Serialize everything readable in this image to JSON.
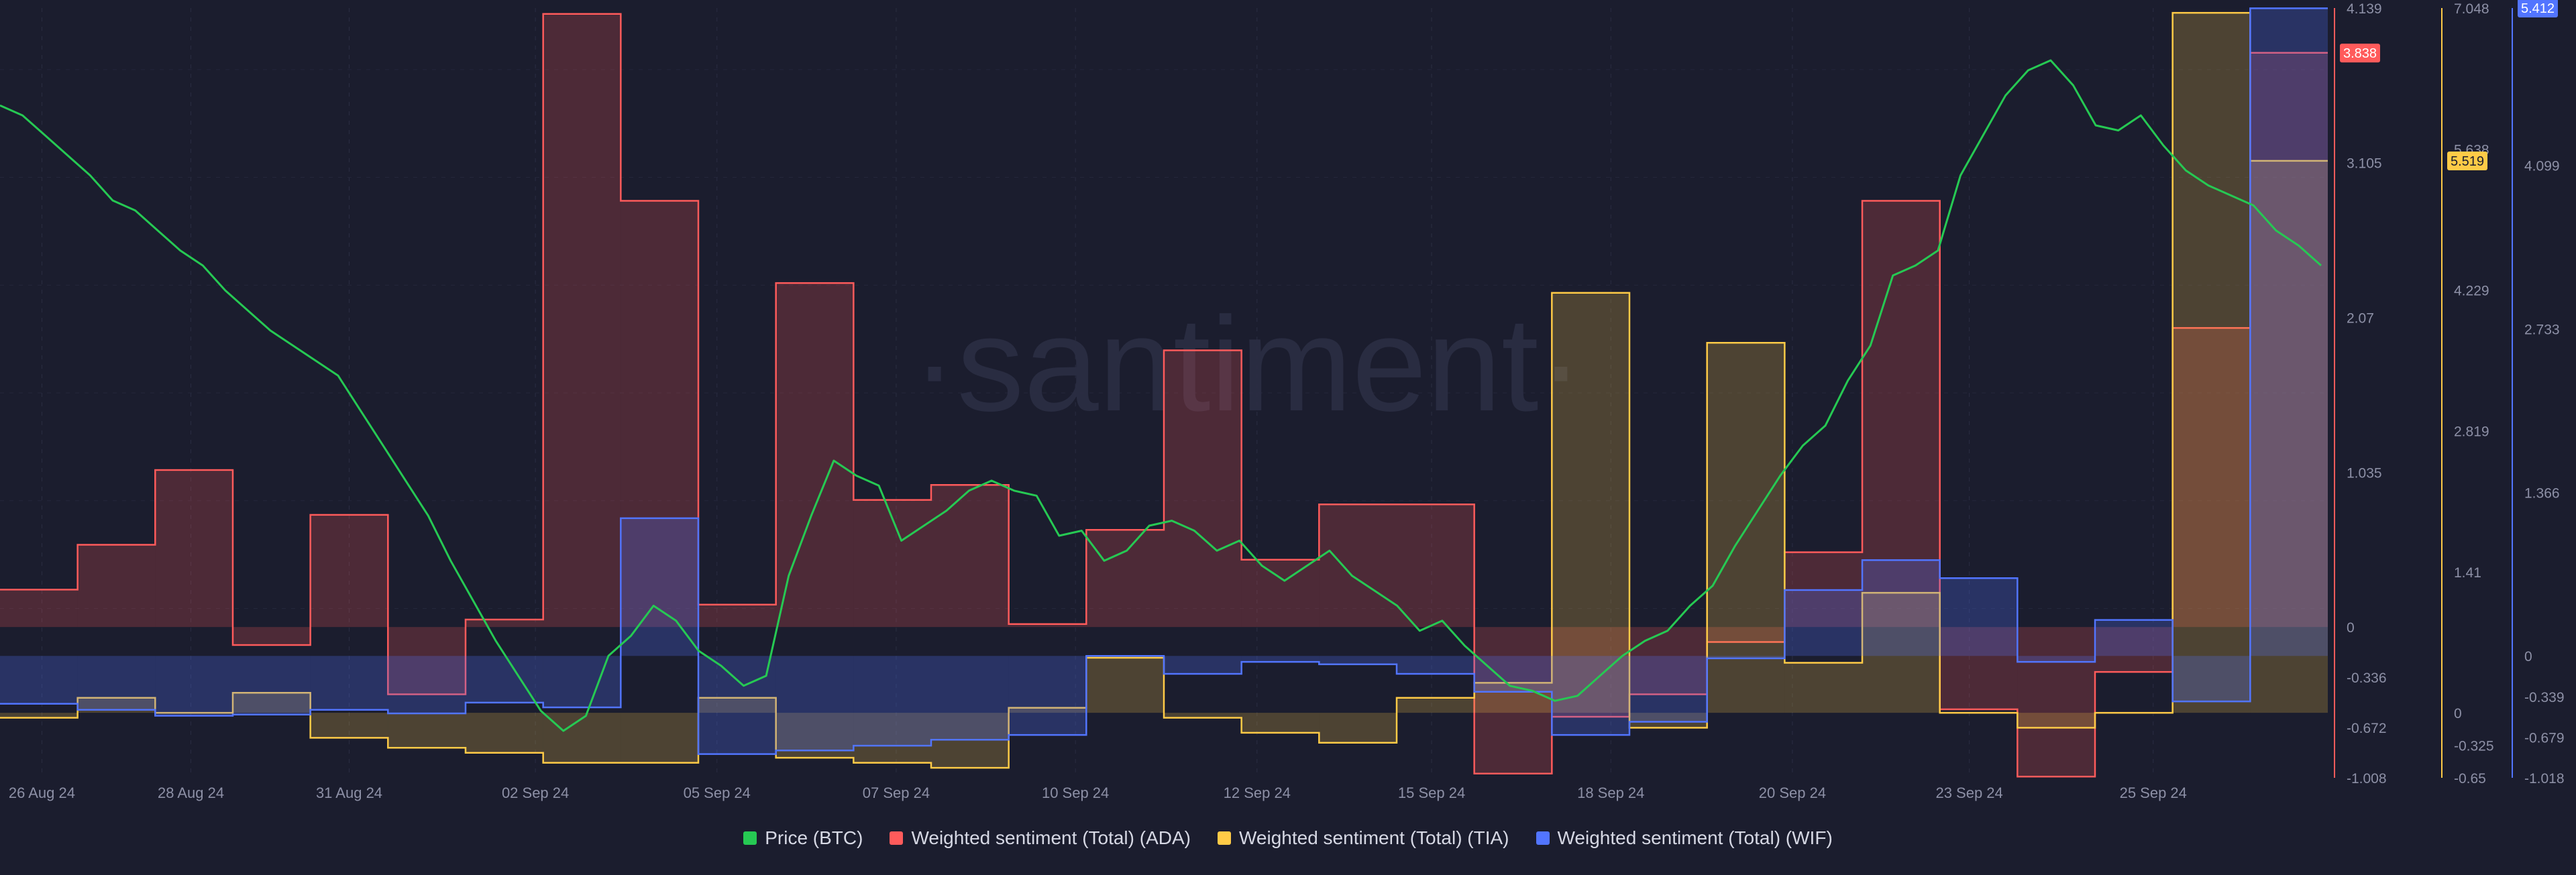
{
  "watermark": "·santiment·",
  "chart_data": {
    "type": "line",
    "x_ticks": [
      "26 Aug 24",
      "28 Aug 24",
      "31 Aug 24",
      "02 Sep 24",
      "05 Sep 24",
      "07 Sep 24",
      "10 Sep 24",
      "12 Sep 24",
      "15 Sep 24",
      "18 Sep 24",
      "20 Sep 24",
      "23 Sep 24",
      "25 Sep 24"
    ],
    "x_count": 30,
    "axes": {
      "ada": {
        "min": -1.008,
        "max": 4.139,
        "ticks": [
          "4.139",
          "3.105",
          "2.07",
          "1.035",
          "0",
          "-0.336",
          "-0.672",
          "-1.008"
        ],
        "last_value": "3.838"
      },
      "tia": {
        "min": -0.65,
        "max": 7.048,
        "ticks": [
          "7.048",
          "5.638",
          "4.229",
          "2.819",
          "1.41",
          "0",
          "-0.325",
          "-0.65"
        ],
        "last_value": "5.519"
      },
      "wif": {
        "min": -1.018,
        "max": 5.412,
        "ticks": [
          "4.099",
          "2.733",
          "1.366",
          "0",
          "-0.339",
          "-0.679",
          "-1.018"
        ],
        "last_value": "5.412"
      }
    },
    "series": [
      {
        "key": "btc",
        "name": "Price (BTC)",
        "color": "#26c953",
        "values": [
          66.0,
          65.8,
          65.4,
          65.0,
          64.6,
          64.1,
          63.9,
          63.5,
          63.1,
          62.8,
          62.3,
          61.9,
          61.5,
          61.2,
          60.9,
          60.6,
          59.9,
          59.2,
          58.5,
          57.8,
          56.9,
          56.1,
          55.3,
          54.6,
          53.9,
          53.5,
          53.8,
          55.0,
          55.4,
          56.0,
          55.7,
          55.1,
          54.8,
          54.4,
          54.6,
          56.6,
          57.8,
          58.9,
          58.6,
          58.4,
          57.3,
          57.6,
          57.9,
          58.3,
          58.5,
          58.3,
          58.2,
          57.4,
          57.5,
          56.9,
          57.1,
          57.6,
          57.7,
          57.5,
          57.1,
          57.3,
          56.8,
          56.5,
          56.8,
          57.1,
          56.6,
          56.3,
          56.0,
          55.5,
          55.7,
          55.2,
          54.8,
          54.4,
          54.3,
          54.1,
          54.2,
          54.6,
          55.0,
          55.3,
          55.5,
          56.0,
          56.4,
          57.2,
          57.9,
          58.6,
          59.2,
          59.6,
          60.5,
          61.2,
          62.6,
          62.8,
          63.1,
          64.6,
          65.4,
          66.2,
          66.7,
          66.9,
          66.4,
          65.6,
          65.5,
          65.8,
          65.2,
          64.7,
          64.4,
          64.2,
          64.0,
          63.5,
          63.2,
          62.8
        ]
      },
      {
        "key": "ada",
        "name": "Weighted sentiment (Total) (ADA)",
        "color": "#ff5b5b",
        "axis": "ada",
        "values": [
          0.25,
          0.55,
          1.05,
          -0.12,
          0.75,
          -0.45,
          0.05,
          4.1,
          2.85,
          0.15,
          2.3,
          0.85,
          0.95,
          0.02,
          0.65,
          1.85,
          0.45,
          0.82,
          0.82,
          -0.98,
          -0.6,
          -0.45,
          -0.1,
          0.5,
          2.85,
          -0.55,
          -1.0,
          -0.3,
          2.0,
          3.84
        ]
      },
      {
        "key": "tia",
        "name": "Weighted sentiment (Total) (TIA)",
        "color": "#ffcb47",
        "axis": "tia",
        "values": [
          -0.05,
          0.15,
          0.0,
          0.2,
          -0.25,
          -0.35,
          -0.4,
          -0.5,
          -0.5,
          0.15,
          -0.45,
          -0.5,
          -0.55,
          0.05,
          0.55,
          -0.05,
          -0.2,
          -0.3,
          0.15,
          0.3,
          4.2,
          -0.15,
          3.7,
          0.5,
          1.2,
          0.0,
          -0.15,
          0.0,
          7.0,
          5.52
        ]
      },
      {
        "key": "wif",
        "name": "Weighted sentiment (Total) (WIF)",
        "color": "#5275ff",
        "axis": "wif",
        "values": [
          -0.4,
          -0.45,
          -0.5,
          -0.49,
          -0.45,
          -0.48,
          -0.39,
          -0.43,
          1.15,
          -0.82,
          -0.79,
          -0.75,
          -0.7,
          -0.66,
          0.0,
          -0.15,
          -0.05,
          -0.07,
          -0.15,
          -0.3,
          -0.66,
          -0.55,
          -0.02,
          0.55,
          0.8,
          0.65,
          -0.05,
          0.3,
          -0.38,
          5.41
        ]
      }
    ]
  }
}
